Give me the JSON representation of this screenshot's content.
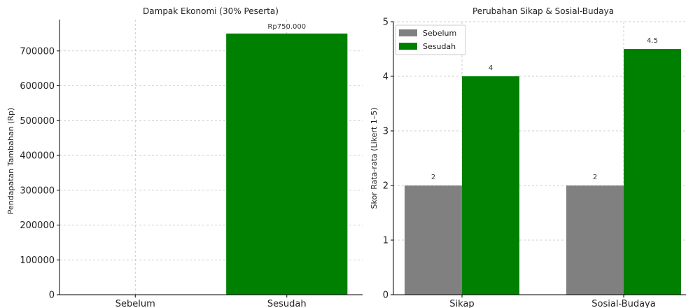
{
  "chart_data": [
    {
      "type": "bar",
      "title": "Dampak Ekonomi (30% Peserta)",
      "xlabel": "",
      "ylabel": "Pendapatan Tambahan (Rp)",
      "categories": [
        "Sebelum",
        "Sesudah"
      ],
      "values": [
        0,
        750000
      ],
      "colors": [
        "#008000",
        "#008000"
      ],
      "data_labels": [
        "",
        "Rp750.000"
      ],
      "ylim": [
        0,
        790000
      ],
      "yticks": [
        0,
        100000,
        200000,
        300000,
        400000,
        500000,
        600000,
        700000
      ],
      "grid": true
    },
    {
      "type": "bar",
      "title": "Perubahan Sikap & Sosial-Budaya",
      "xlabel": "",
      "ylabel": "Skor Rata-rata (Likert 1–5)",
      "categories": [
        "Sikap",
        "Sosial-Budaya"
      ],
      "series": [
        {
          "name": "Sebelum",
          "values": [
            2,
            2
          ],
          "color": "#808080",
          "labels": [
            "2",
            "2"
          ]
        },
        {
          "name": "Sesudah",
          "values": [
            4,
            4.5
          ],
          "color": "#008000",
          "labels": [
            "4",
            "4.5"
          ]
        }
      ],
      "ylim": [
        0,
        5
      ],
      "yticks": [
        0,
        1,
        2,
        3,
        4,
        5
      ],
      "grid": true,
      "legend": "top-left"
    }
  ]
}
